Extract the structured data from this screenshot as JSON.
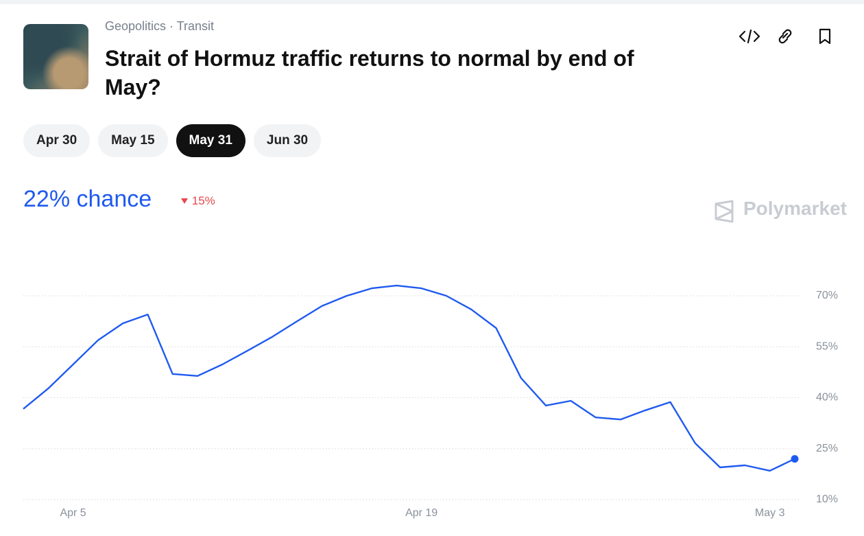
{
  "header": {
    "category": "Geopolitics",
    "subcategory": "Transit",
    "title": "Strait of Hormuz traffic returns to normal by end of May?"
  },
  "tabs": [
    "Apr 30",
    "May 15",
    "May 31",
    "Jun 30"
  ],
  "active_tab": 2,
  "chance": "22% chance",
  "change": "15%",
  "brand": "Polymarket",
  "chart_data": {
    "type": "line",
    "x": [
      "Apr 3",
      "Apr 4",
      "Apr 5",
      "Apr 6",
      "Apr 7",
      "Apr 8",
      "Apr 9",
      "Apr 10",
      "Apr 11",
      "Apr 12",
      "Apr 13",
      "Apr 14",
      "Apr 15",
      "Apr 16",
      "Apr 17",
      "Apr 18",
      "Apr 19",
      "Apr 20",
      "Apr 21",
      "Apr 22",
      "Apr 23",
      "Apr 24",
      "Apr 25",
      "Apr 26",
      "Apr 27",
      "Apr 28",
      "Apr 29",
      "Apr 30",
      "May 1",
      "May 2",
      "May 3",
      "May 4"
    ],
    "series": [
      {
        "color": "#1f5af0",
        "values": [
          36.7,
          42.7,
          49.8,
          56.9,
          61.9,
          64.5,
          47,
          46.4,
          49.8,
          53.8,
          57.9,
          62.5,
          67,
          70,
          72.2,
          73,
          72.2,
          70,
          66,
          60.5,
          45.8,
          37.7,
          39.1,
          34.2,
          33.6,
          36.3,
          38.7,
          26.6,
          19.5,
          20.1,
          18.5,
          22
        ]
      }
    ],
    "ylim": [
      10,
      80
    ],
    "yticks": [
      {
        "value": 10,
        "label": "10%"
      },
      {
        "value": 25,
        "label": "25%"
      },
      {
        "value": 40,
        "label": "40%"
      },
      {
        "value": 55,
        "label": "55%"
      },
      {
        "value": 70,
        "label": "70%"
      }
    ],
    "xticks": [
      "Apr 5",
      "Apr 19",
      "May 3"
    ],
    "grid": true
  }
}
